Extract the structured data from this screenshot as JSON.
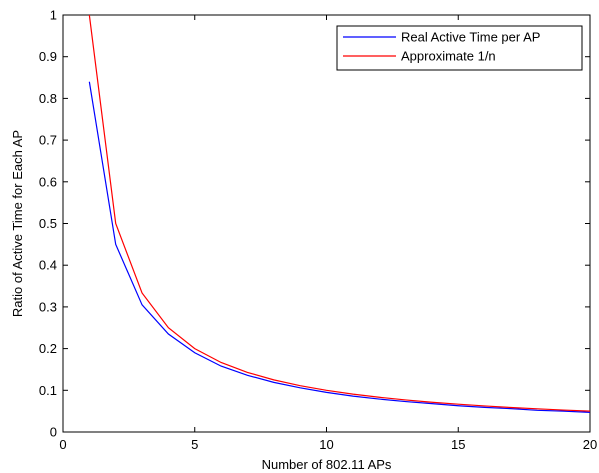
{
  "chart_data": {
    "type": "line",
    "title": "",
    "xlabel": "Number of 802.11 APs",
    "ylabel": "Ratio of Active Time for Each AP",
    "xlim": [
      0,
      20
    ],
    "ylim": [
      0,
      1
    ],
    "xticks": [
      0,
      5,
      10,
      15,
      20
    ],
    "yticks": [
      0,
      0.1,
      0.2,
      0.3,
      0.4,
      0.5,
      0.6,
      0.7,
      0.8,
      0.9,
      1
    ],
    "grid": false,
    "legend_position": "top-right",
    "series": [
      {
        "name": "Real Active Time per AP",
        "color": "#0000ff",
        "x": [
          1,
          2,
          3,
          4,
          5,
          6,
          7,
          8,
          9,
          10,
          11,
          12,
          13,
          14,
          15,
          16,
          17,
          18,
          19,
          20
        ],
        "y": [
          0.84,
          0.45,
          0.305,
          0.235,
          0.19,
          0.158,
          0.136,
          0.119,
          0.106,
          0.095,
          0.086,
          0.079,
          0.073,
          0.068,
          0.063,
          0.059,
          0.056,
          0.052,
          0.05,
          0.047
        ]
      },
      {
        "name": "Approximate 1/n",
        "color": "#ff0000",
        "x": [
          1,
          2,
          3,
          4,
          5,
          6,
          7,
          8,
          9,
          10,
          11,
          12,
          13,
          14,
          15,
          16,
          17,
          18,
          19,
          20
        ],
        "y": [
          1,
          0.5,
          0.3333,
          0.25,
          0.2,
          0.1667,
          0.1429,
          0.125,
          0.1111,
          0.1,
          0.0909,
          0.0833,
          0.0769,
          0.0714,
          0.0667,
          0.0625,
          0.0588,
          0.0556,
          0.0526,
          0.05
        ]
      }
    ]
  }
}
